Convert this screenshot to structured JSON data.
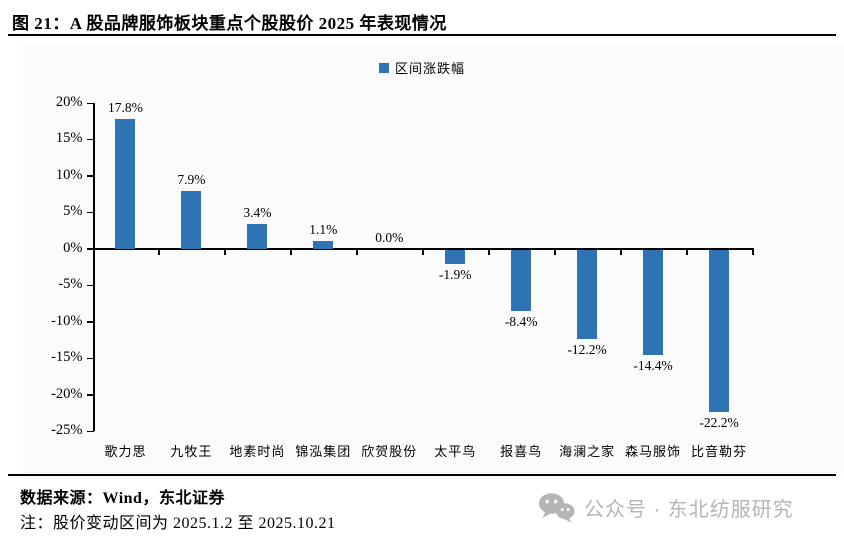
{
  "title": "图 21：A 股品牌服饰板块重点个股股价 2025 年表现情况",
  "legend": {
    "label": "区间涨跌幅",
    "color": "#2E74B5"
  },
  "chart_data": {
    "type": "bar",
    "title": "A 股品牌服饰板块重点个股股价 2025 年表现情况",
    "series_name": "区间涨跌幅",
    "categories": [
      "歌力思",
      "九牧王",
      "地素时尚",
      "锦泓集团",
      "欣贺股份",
      "太平鸟",
      "报喜鸟",
      "海澜之家",
      "森马服饰",
      "比音勒芬"
    ],
    "values": [
      17.8,
      7.9,
      3.4,
      1.1,
      0.0,
      -1.9,
      -8.4,
      -12.2,
      -14.4,
      -22.2
    ],
    "value_labels": [
      "17.8%",
      "7.9%",
      "3.4%",
      "1.1%",
      "0.0%",
      "-1.9%",
      "-8.4%",
      "-12.2%",
      "-14.4%",
      "-22.2%"
    ],
    "xlabel": "",
    "ylabel": "",
    "ylim": [
      -25,
      20
    ],
    "ytick_step": 5,
    "ytick_labels": [
      "20%",
      "15%",
      "10%",
      "5%",
      "0%",
      "-5%",
      "-10%",
      "-15%",
      "-20%",
      "-25%"
    ],
    "bar_color": "#2E74B5",
    "grid": false,
    "legend_position": "top-center"
  },
  "footer": {
    "source": "数据来源：Wind，东北证券",
    "note": "注：股价变动区间为 2025.1.2 至 2025.10.21",
    "wechat_label": "公众号 · 东北纺服研究",
    "wechat_color": "#b5b5b5"
  }
}
